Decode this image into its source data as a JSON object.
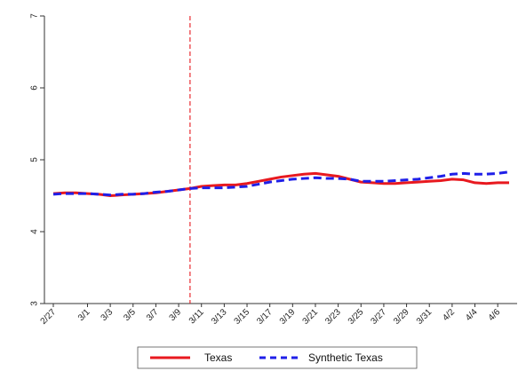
{
  "chart_data": {
    "type": "line",
    "x": [
      "2/27",
      "2/28",
      "2/29",
      "3/1",
      "3/2",
      "3/3",
      "3/4",
      "3/5",
      "3/6",
      "3/7",
      "3/8",
      "3/9",
      "3/10",
      "3/11",
      "3/12",
      "3/13",
      "3/14",
      "3/15",
      "3/16",
      "3/17",
      "3/18",
      "3/19",
      "3/20",
      "3/21",
      "3/22",
      "3/23",
      "3/24",
      "3/25",
      "3/26",
      "3/27",
      "3/28",
      "3/29",
      "3/30",
      "3/31",
      "4/1",
      "4/2",
      "4/3",
      "4/4",
      "4/5",
      "4/6",
      "4/7"
    ],
    "x_tick_labels": [
      "2/27",
      "3/1",
      "3/3",
      "3/5",
      "3/7",
      "3/9",
      "3/11",
      "3/13",
      "3/15",
      "3/17",
      "3/19",
      "3/21",
      "3/23",
      "3/25",
      "3/27",
      "3/29",
      "3/31",
      "4/2",
      "4/4",
      "4/6"
    ],
    "ylim": [
      3,
      7
    ],
    "y_ticks": [
      "3",
      "4",
      "5",
      "6",
      "7"
    ],
    "vline_at": "3/10",
    "grid": false,
    "legend_position": "bottom",
    "series": [
      {
        "name": "Texas",
        "color": "#e8191f",
        "line_style": "solid",
        "values": [
          4.53,
          4.54,
          4.54,
          4.53,
          4.52,
          4.5,
          4.51,
          4.52,
          4.53,
          4.54,
          4.56,
          4.58,
          4.6,
          4.63,
          4.64,
          4.65,
          4.65,
          4.67,
          4.7,
          4.73,
          4.76,
          4.78,
          4.8,
          4.81,
          4.79,
          4.77,
          4.73,
          4.69,
          4.68,
          4.67,
          4.67,
          4.68,
          4.69,
          4.7,
          4.71,
          4.73,
          4.72,
          4.68,
          4.67,
          4.68,
          4.68
        ]
      },
      {
        "name": "Synthetic Texas",
        "color": "#1f1fe8",
        "line_style": "dashed",
        "values": [
          4.52,
          4.53,
          4.53,
          4.53,
          4.52,
          4.51,
          4.52,
          4.52,
          4.53,
          4.55,
          4.56,
          4.58,
          4.6,
          4.61,
          4.61,
          4.61,
          4.62,
          4.63,
          4.66,
          4.69,
          4.71,
          4.73,
          4.74,
          4.75,
          4.74,
          4.74,
          4.73,
          4.7,
          4.7,
          4.7,
          4.71,
          4.72,
          4.73,
          4.75,
          4.77,
          4.8,
          4.81,
          4.8,
          4.8,
          4.81,
          4.83
        ]
      }
    ]
  }
}
